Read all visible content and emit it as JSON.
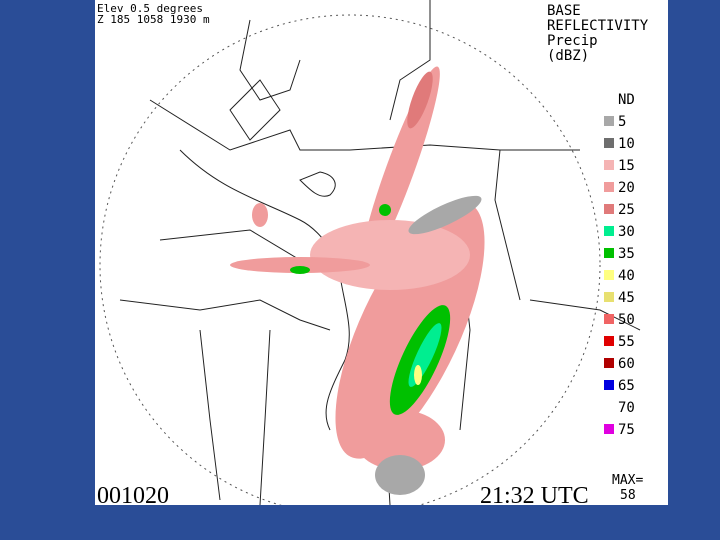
{
  "header": {
    "elev": "Elev 0.5 degrees",
    "site": "Z 185 1058 1930 m"
  },
  "product": {
    "lines": [
      "BASE",
      "REFLECTIVITY",
      "Precip",
      "(dBZ)"
    ]
  },
  "legend": [
    {
      "label": "ND"
    },
    {
      "label": "5",
      "color": "#a8a8a8"
    },
    {
      "label": "10",
      "color": "#6e6e6e"
    },
    {
      "label": "15",
      "color": "#f5b4b4"
    },
    {
      "label": "20",
      "color": "#f09c9c"
    },
    {
      "label": "25",
      "color": "#e07a7a"
    },
    {
      "label": "30",
      "color": "#00ee90"
    },
    {
      "label": "35",
      "color": "#00c000"
    },
    {
      "label": "40",
      "color": "#ffff80"
    },
    {
      "label": "45",
      "color": "#e8e070"
    },
    {
      "label": "50",
      "color": "#f06464"
    },
    {
      "label": "55",
      "color": "#e00000"
    },
    {
      "label": "60",
      "color": "#b00000"
    },
    {
      "label": "65",
      "color": "#0000e0"
    },
    {
      "label": "70"
    },
    {
      "label": "75",
      "color": "#e000e0"
    }
  ],
  "footer": {
    "date": "001020",
    "time": "21:32 UTC",
    "max_label": "MAX=",
    "max_value": "58"
  }
}
